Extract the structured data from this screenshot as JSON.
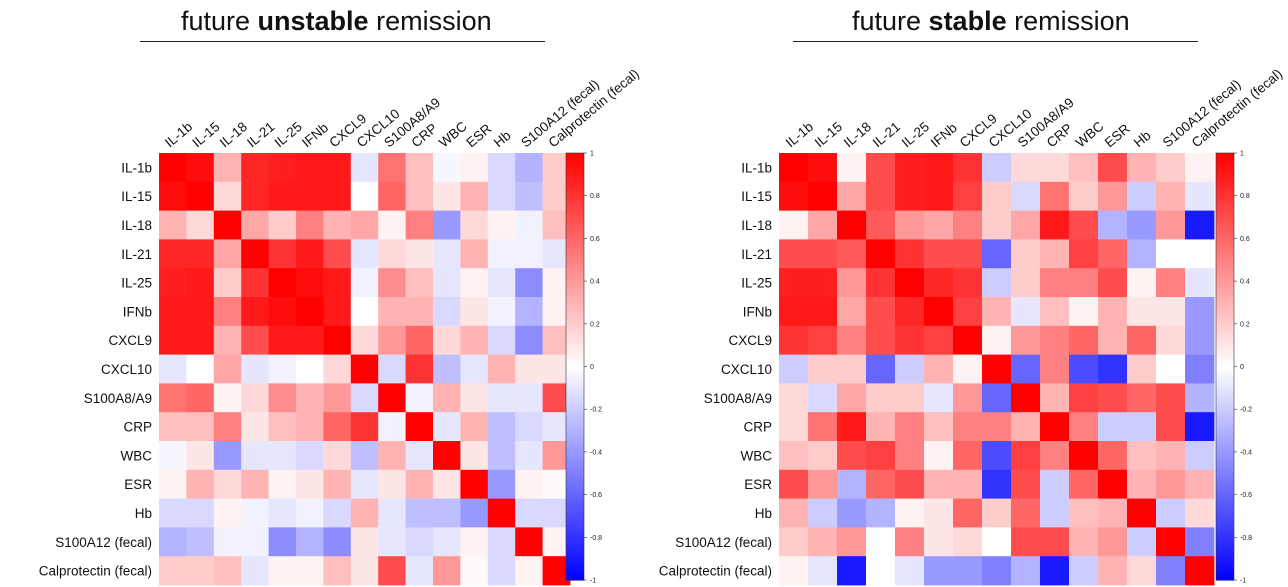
{
  "chart_data": [
    {
      "type": "heatmap",
      "title": {
        "pre": "future ",
        "bold": "unstable",
        "post": " remission"
      },
      "variables": [
        "IL-1b",
        "IL-15",
        "IL-18",
        "IL-21",
        "IL-25",
        "IFNb",
        "CXCL9",
        "CXCL10",
        "S100A8/A9",
        "CRP",
        "WBC",
        "ESR",
        "Hb",
        "S100A12 (fecal)",
        "Calprotectin (fecal)"
      ],
      "values": [
        [
          1.0,
          0.95,
          0.3,
          0.85,
          0.88,
          0.9,
          0.9,
          -0.1,
          0.55,
          0.25,
          -0.03,
          0.05,
          -0.15,
          -0.3,
          0.2
        ],
        [
          0.95,
          1.0,
          0.15,
          0.85,
          0.9,
          0.9,
          0.9,
          0.0,
          0.6,
          0.25,
          0.1,
          0.3,
          -0.15,
          -0.25,
          0.2
        ],
        [
          0.3,
          0.15,
          1.0,
          0.35,
          0.2,
          0.5,
          0.3,
          0.35,
          0.05,
          0.5,
          -0.4,
          0.15,
          0.05,
          -0.05,
          0.25
        ],
        [
          0.85,
          0.85,
          0.35,
          1.0,
          0.8,
          0.9,
          0.7,
          -0.1,
          0.15,
          0.1,
          -0.1,
          0.3,
          -0.05,
          -0.05,
          -0.1
        ],
        [
          0.88,
          0.9,
          0.2,
          0.8,
          1.0,
          0.95,
          0.9,
          -0.05,
          0.45,
          0.25,
          -0.1,
          0.05,
          -0.1,
          -0.45,
          0.05
        ],
        [
          0.9,
          0.9,
          0.5,
          0.9,
          0.95,
          1.0,
          0.9,
          0.0,
          0.3,
          0.3,
          -0.15,
          0.1,
          -0.05,
          -0.3,
          0.05
        ],
        [
          0.9,
          0.9,
          0.3,
          0.7,
          0.9,
          0.9,
          1.0,
          0.15,
          0.4,
          0.6,
          0.15,
          0.3,
          -0.15,
          -0.45,
          0.25
        ],
        [
          -0.1,
          0.0,
          0.35,
          -0.1,
          -0.05,
          0.0,
          0.15,
          1.0,
          -0.15,
          0.8,
          -0.25,
          -0.1,
          0.3,
          0.1,
          0.1
        ],
        [
          0.55,
          0.6,
          0.05,
          0.15,
          0.45,
          0.3,
          0.4,
          -0.15,
          1.0,
          -0.05,
          0.3,
          0.1,
          -0.1,
          -0.1,
          0.7
        ],
        [
          0.25,
          0.25,
          0.5,
          0.1,
          0.25,
          0.3,
          0.6,
          0.8,
          -0.05,
          1.0,
          -0.1,
          0.3,
          -0.25,
          -0.15,
          -0.1
        ],
        [
          -0.03,
          0.1,
          -0.4,
          -0.1,
          -0.1,
          -0.15,
          0.15,
          -0.25,
          0.3,
          -0.1,
          1.0,
          0.1,
          -0.25,
          -0.1,
          0.4
        ],
        [
          0.05,
          0.3,
          0.15,
          0.3,
          0.05,
          0.1,
          0.3,
          -0.1,
          0.1,
          0.3,
          0.1,
          1.0,
          -0.4,
          0.05,
          0.02
        ],
        [
          -0.15,
          -0.15,
          0.05,
          -0.05,
          -0.1,
          -0.05,
          -0.15,
          0.3,
          -0.1,
          -0.25,
          -0.25,
          -0.4,
          1.0,
          -0.15,
          -0.15
        ],
        [
          -0.3,
          -0.25,
          -0.05,
          -0.05,
          -0.45,
          -0.3,
          -0.45,
          0.1,
          -0.1,
          -0.15,
          -0.1,
          0.05,
          -0.15,
          1.0,
          0.05
        ],
        [
          0.2,
          0.2,
          0.25,
          -0.1,
          0.05,
          0.05,
          0.25,
          0.1,
          0.7,
          -0.1,
          0.4,
          0.02,
          -0.15,
          0.05,
          1.0
        ]
      ],
      "zlim": [
        -1,
        1
      ]
    },
    {
      "type": "heatmap",
      "title": {
        "pre": "future ",
        "bold": "stable",
        "post": " remission"
      },
      "variables": [
        "IL-1b",
        "IL-15",
        "IL-18",
        "IL-21",
        "IL-25",
        "IFNb",
        "CXCL9",
        "CXCL10",
        "S100A8/A9",
        "CRP",
        "WBC",
        "ESR",
        "Hb",
        "S100A12 (fecal)",
        "Calprotectin (fecal)"
      ],
      "values": [
        [
          1.0,
          0.95,
          0.05,
          0.7,
          0.88,
          0.9,
          0.8,
          -0.2,
          0.15,
          0.15,
          0.25,
          0.7,
          0.3,
          0.2,
          0.05
        ],
        [
          0.95,
          1.0,
          0.35,
          0.7,
          0.88,
          0.9,
          0.75,
          0.2,
          -0.15,
          0.55,
          0.2,
          0.4,
          -0.2,
          0.3,
          -0.1
        ],
        [
          0.05,
          0.35,
          1.0,
          0.65,
          0.4,
          0.35,
          0.5,
          0.2,
          0.35,
          0.9,
          0.7,
          -0.3,
          -0.4,
          0.4,
          -0.9
        ],
        [
          0.7,
          0.7,
          0.65,
          1.0,
          0.8,
          0.7,
          0.7,
          -0.6,
          0.2,
          0.3,
          0.75,
          0.6,
          -0.3,
          0.0,
          0.0
        ],
        [
          0.88,
          0.88,
          0.4,
          0.8,
          1.0,
          0.85,
          0.8,
          -0.2,
          0.2,
          0.5,
          0.5,
          0.7,
          0.05,
          0.5,
          -0.1
        ],
        [
          0.9,
          0.9,
          0.35,
          0.7,
          0.85,
          1.0,
          0.75,
          0.3,
          -0.1,
          0.25,
          0.05,
          0.3,
          0.1,
          0.1,
          -0.4
        ],
        [
          0.8,
          0.75,
          0.5,
          0.7,
          0.8,
          0.75,
          1.0,
          0.05,
          0.4,
          0.5,
          0.6,
          0.3,
          0.6,
          0.15,
          -0.4
        ],
        [
          -0.2,
          0.2,
          0.2,
          -0.6,
          -0.2,
          0.3,
          0.05,
          1.0,
          -0.6,
          0.5,
          -0.7,
          -0.8,
          0.2,
          0.0,
          -0.5
        ],
        [
          0.15,
          -0.15,
          0.35,
          0.2,
          0.2,
          -0.1,
          0.4,
          -0.6,
          1.0,
          0.3,
          0.75,
          0.7,
          0.6,
          0.7,
          -0.3
        ],
        [
          0.15,
          0.55,
          0.9,
          0.3,
          0.5,
          0.25,
          0.5,
          0.5,
          0.3,
          1.0,
          0.5,
          -0.2,
          -0.2,
          0.7,
          -0.9
        ],
        [
          0.25,
          0.2,
          0.7,
          0.75,
          0.5,
          0.05,
          0.6,
          -0.7,
          0.75,
          0.5,
          1.0,
          0.6,
          0.25,
          0.3,
          -0.2
        ],
        [
          0.7,
          0.4,
          -0.3,
          0.6,
          0.7,
          0.3,
          0.3,
          -0.8,
          0.7,
          -0.2,
          0.6,
          1.0,
          0.3,
          0.4,
          0.3
        ],
        [
          0.3,
          -0.2,
          -0.4,
          -0.3,
          0.05,
          0.1,
          0.6,
          0.2,
          0.6,
          -0.2,
          0.25,
          0.3,
          1.0,
          -0.2,
          0.15
        ],
        [
          0.2,
          0.3,
          0.4,
          0.0,
          0.5,
          0.1,
          0.15,
          0.0,
          0.7,
          0.7,
          0.3,
          0.4,
          -0.2,
          1.0,
          -0.5
        ],
        [
          0.05,
          -0.1,
          -0.9,
          0.0,
          -0.1,
          -0.4,
          -0.4,
          -0.5,
          -0.3,
          -0.9,
          -0.2,
          0.3,
          0.15,
          -0.5,
          1.0
        ]
      ],
      "zlim": [
        -1,
        1
      ]
    }
  ],
  "colorbar_ticks": [
    "1",
    "0.8",
    "0.6",
    "0.4",
    "0.2",
    "0",
    "-0.2",
    "-0.4",
    "-0.6",
    "-0.8",
    "-1"
  ]
}
